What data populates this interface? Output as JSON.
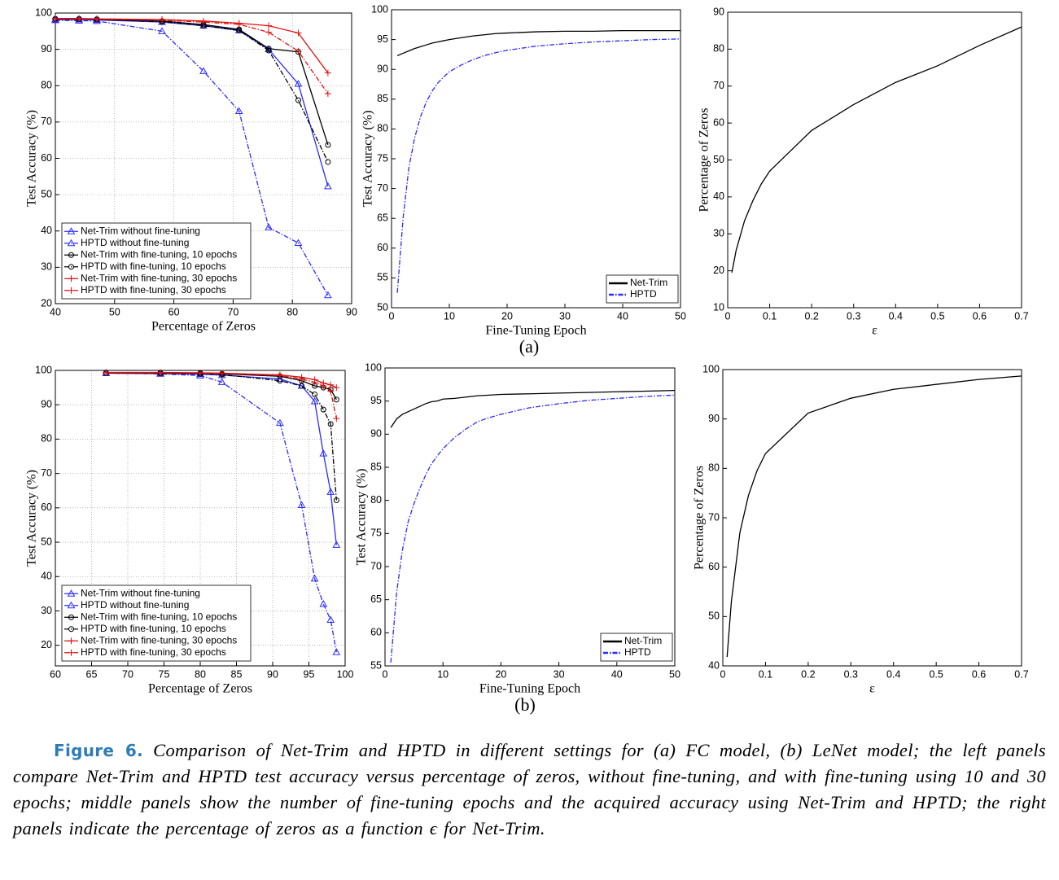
{
  "chart_data": [
    {
      "type": "line",
      "xlabel": "Percentage of Zeros",
      "ylabel": "Test Accuracy (%)",
      "xlim": [
        40,
        90
      ],
      "xticks": [
        40,
        50,
        60,
        70,
        80,
        90
      ],
      "ylim": [
        20,
        100
      ],
      "yticks": [
        20,
        30,
        40,
        50,
        60,
        70,
        80,
        90,
        100
      ],
      "grid": true,
      "legend": "lower left",
      "x": [
        40,
        44,
        47,
        58,
        65,
        71,
        76,
        81,
        86
      ],
      "series": [
        {
          "name": "Net-Trim without fine-tuning",
          "color": "#2b2bff",
          "marker": "triangle",
          "dash": "solid",
          "values": [
            98.2,
            98.2,
            98.1,
            97.5,
            96.5,
            95.2,
            90,
            80.5,
            52.3
          ]
        },
        {
          "name": "HPTD without fine-tuning",
          "color": "#2b2bff",
          "marker": "triangle",
          "dash": "dashdot",
          "values": [
            98,
            97.9,
            97.8,
            95,
            84,
            73,
            41,
            36.7,
            22.3
          ]
        },
        {
          "name": "Net-Trim with fine-tuning, 10 epochs",
          "color": "#000000",
          "marker": "circle",
          "dash": "solid",
          "values": [
            98.4,
            98.4,
            98.3,
            97.8,
            96.8,
            95.5,
            90.2,
            89.3,
            63.7
          ]
        },
        {
          "name": "HPTD with fine-tuning, 10 epochs",
          "color": "#000000",
          "marker": "circle",
          "dash": "dashdot",
          "values": [
            98.3,
            98.3,
            98.2,
            97.6,
            96.5,
            95.2,
            89.7,
            76,
            59
          ]
        },
        {
          "name": "Net-Trim with fine-tuning, 30 epochs",
          "color": "#e01010",
          "marker": "plus",
          "dash": "solid",
          "values": [
            98.5,
            98.5,
            98.4,
            98.2,
            97.8,
            97.2,
            96.5,
            94.5,
            83.5
          ]
        },
        {
          "name": "HPTD with fine-tuning, 30 epochs",
          "color": "#e01010",
          "marker": "plus",
          "dash": "dashdot",
          "values": [
            98.4,
            98.4,
            98.3,
            98,
            97.5,
            96.9,
            94.7,
            89.5,
            77.8
          ]
        }
      ]
    },
    {
      "type": "line",
      "xlabel": "Fine-Tuning Epoch",
      "ylabel": "Test Accuracy (%)",
      "xlim": [
        0,
        50
      ],
      "xticks": [
        0,
        10,
        20,
        30,
        40,
        50
      ],
      "ylim": [
        50,
        100
      ],
      "yticks": [
        50,
        55,
        60,
        65,
        70,
        75,
        80,
        85,
        90,
        95,
        100
      ],
      "grid": false,
      "legend": "lower right",
      "x": [
        1,
        2,
        3,
        4,
        5,
        6,
        7,
        8,
        9,
        10,
        12,
        14,
        16,
        18,
        20,
        25,
        30,
        35,
        40,
        45,
        50
      ],
      "series": [
        {
          "name": "Net-Trim",
          "color": "#000000",
          "dash": "solid",
          "values": [
            92.3,
            92.7,
            93.1,
            93.5,
            93.8,
            94.1,
            94.4,
            94.6,
            94.8,
            95.0,
            95.3,
            95.6,
            95.8,
            96.0,
            96.1,
            96.3,
            96.4,
            96.4,
            96.5,
            96.5,
            96.5
          ]
        },
        {
          "name": "HPTD",
          "color": "#2b2bff",
          "dash": "dashdot",
          "values": [
            52.5,
            65,
            73.5,
            78.5,
            82,
            84.5,
            86.3,
            87.7,
            88.7,
            89.6,
            90.7,
            91.6,
            92.3,
            92.8,
            93.2,
            93.9,
            94.3,
            94.6,
            94.8,
            95.0,
            95.1
          ]
        }
      ]
    },
    {
      "type": "line",
      "xlabel": "ε",
      "ylabel": "Percentage of Zeros",
      "xlim": [
        0,
        0.7
      ],
      "xticks": [
        0,
        0.1,
        0.2,
        0.3,
        0.4,
        0.5,
        0.6,
        0.7
      ],
      "ylim": [
        10,
        90
      ],
      "yticks": [
        10,
        20,
        30,
        40,
        50,
        60,
        70,
        80,
        90
      ],
      "grid": false,
      "x": [
        0.01,
        0.02,
        0.04,
        0.06,
        0.08,
        0.1,
        0.15,
        0.2,
        0.3,
        0.4,
        0.5,
        0.6,
        0.7
      ],
      "series": [
        {
          "color": "#000000",
          "dash": "solid",
          "values": [
            19.5,
            25.5,
            33.5,
            39,
            43.5,
            47,
            52.5,
            58,
            65,
            71,
            75.5,
            81,
            86
          ]
        }
      ]
    },
    {
      "type": "line",
      "xlabel": "Percentage of Zeros",
      "ylabel": "Test Accuracy (%)",
      "xlim": [
        60,
        100
      ],
      "xticks": [
        60,
        65,
        70,
        75,
        80,
        85,
        90,
        95,
        100
      ],
      "ylim": [
        14,
        100
      ],
      "yticks": [
        20,
        30,
        40,
        50,
        60,
        70,
        80,
        90,
        100
      ],
      "grid": true,
      "legend": "lower left",
      "x": [
        67,
        74.5,
        80,
        83,
        91,
        94,
        95.8,
        97,
        98,
        98.8
      ],
      "series": [
        {
          "name": "Net-Trim without fine-tuning",
          "color": "#2b2bff",
          "marker": "triangle",
          "dash": "solid",
          "values": [
            99.2,
            99.1,
            98.9,
            98.6,
            97.5,
            95.5,
            91,
            75.8,
            64.6,
            49.2
          ]
        },
        {
          "name": "HPTD without fine-tuning",
          "color": "#2b2bff",
          "marker": "triangle",
          "dash": "dashdot",
          "values": [
            99.2,
            99,
            98.5,
            96.6,
            84.7,
            60.8,
            39.4,
            32,
            27.4,
            18
          ]
        },
        {
          "name": "Net-Trim with fine-tuning, 10 epochs",
          "color": "#000000",
          "marker": "circle",
          "dash": "solid",
          "values": [
            99.3,
            99.3,
            99.2,
            99,
            98.3,
            97,
            95.5,
            95,
            94.5,
            91.5
          ]
        },
        {
          "name": "HPTD with fine-tuning, 10 epochs",
          "color": "#000000",
          "marker": "circle",
          "dash": "dashdot",
          "values": [
            99.2,
            99.1,
            99,
            98.8,
            97,
            95.5,
            93,
            88.6,
            84.4,
            62.2
          ]
        },
        {
          "name": "Net-Trim with fine-tuning, 30 epochs",
          "color": "#e01010",
          "marker": "plus",
          "dash": "solid",
          "values": [
            99.4,
            99.4,
            99.3,
            99.2,
            98.7,
            98,
            97.3,
            96.3,
            95.8,
            95
          ]
        },
        {
          "name": "HPTD with fine-tuning, 30 epochs",
          "color": "#e01010",
          "marker": "plus",
          "dash": "dashdot",
          "values": [
            99.3,
            99.3,
            99.2,
            99.1,
            98.5,
            97.5,
            96.5,
            95.5,
            94,
            86
          ]
        }
      ]
    },
    {
      "type": "line",
      "xlabel": "Fine-Tuning Epoch",
      "ylabel": "Test Accuracy (%)",
      "xlim": [
        0,
        50
      ],
      "xticks": [
        0,
        10,
        20,
        30,
        40,
        50
      ],
      "ylim": [
        55,
        100
      ],
      "yticks": [
        55,
        60,
        65,
        70,
        75,
        80,
        85,
        90,
        95,
        100
      ],
      "grid": false,
      "legend": "lower right",
      "x": [
        1,
        2,
        3,
        4,
        5,
        6,
        7,
        8,
        9,
        10,
        12,
        14,
        16,
        18,
        20,
        25,
        30,
        35,
        40,
        45,
        50
      ],
      "series": [
        {
          "name": "Net-Trim",
          "color": "#000000",
          "dash": "solid",
          "values": [
            91,
            92.3,
            93,
            93.4,
            93.8,
            94.2,
            94.6,
            94.9,
            95.0,
            95.3,
            95.4,
            95.6,
            95.8,
            95.9,
            96,
            96.1,
            96.2,
            96.3,
            96.4,
            96.5,
            96.6
          ]
        },
        {
          "name": "HPTD",
          "color": "#2b2bff",
          "dash": "dashdot",
          "values": [
            55.5,
            66,
            72.5,
            76.8,
            79.5,
            81.8,
            83.8,
            85.5,
            86.7,
            87.8,
            89.5,
            90.8,
            91.9,
            92.5,
            93.0,
            94.0,
            94.6,
            95.1,
            95.4,
            95.7,
            95.9
          ]
        }
      ]
    },
    {
      "type": "line",
      "xlabel": "ε",
      "ylabel": "Percentage of Zeros",
      "xlim": [
        0,
        0.7
      ],
      "xticks": [
        0,
        0.1,
        0.2,
        0.3,
        0.4,
        0.5,
        0.6,
        0.7
      ],
      "ylim": [
        40,
        100
      ],
      "yticks": [
        40,
        50,
        60,
        70,
        80,
        90,
        100
      ],
      "grid": false,
      "x": [
        0.01,
        0.02,
        0.03,
        0.04,
        0.06,
        0.08,
        0.1,
        0.2,
        0.3,
        0.4,
        0.5,
        0.6,
        0.7
      ],
      "series": [
        {
          "color": "#000000",
          "dash": "solid",
          "values": [
            41.8,
            53,
            60,
            67,
            74.5,
            79.5,
            83,
            91.2,
            94.2,
            96,
            97,
            98,
            98.7
          ]
        }
      ]
    }
  ],
  "panel_labels": [
    "(a)",
    "(b)"
  ],
  "figure": {
    "label": "Figure 6.",
    "caption": "Comparison of Net-Trim and HPTD in different settings for (a) FC model, (b) LeNet model; the left panels compare Net-Trim and HPTD test accuracy versus percentage of zeros, without fine-tuning, and with fine-tuning using 10 and 30 epochs; middle panels show the number of fine-tuning epochs and the acquired accuracy using Net-Trim and HPTD; the right panels indicate the percentage of zeros as a function ϵ for Net-Trim."
  }
}
